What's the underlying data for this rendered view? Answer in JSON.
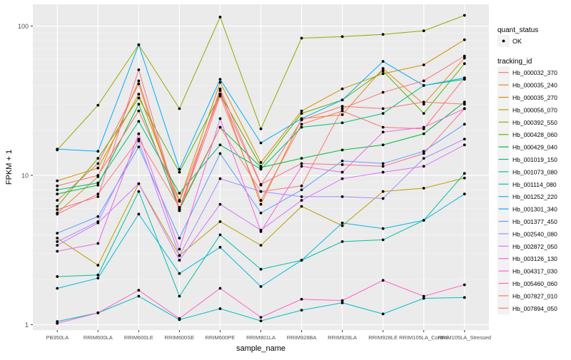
{
  "chart_data": {
    "type": "line",
    "xlabel": "sample_name",
    "ylabel": "FPKM + 1",
    "y_scale": "log10",
    "ylim": [
      0.92,
      140
    ],
    "y_ticks": [
      1,
      10,
      100
    ],
    "y_tick_labels": [
      "1",
      "10",
      "100"
    ],
    "grid": true,
    "legend_position": "right",
    "categories": [
      "PB350LA",
      "RRIM600LA",
      "RRIM600LE",
      "RRIM600SE",
      "RRIM600PE",
      "RRIM901LA",
      "RRIM928BA",
      "RRIM928LA",
      "RRIM928LE",
      "RRIM105LA_Control",
      "RRIM105LA_Stressed"
    ],
    "point_legend": {
      "title": "quant_status",
      "entries": [
        "OK"
      ]
    },
    "line_legend_title": "tracking_id",
    "series": [
      {
        "name": "Hb_000032_370",
        "color": "#F8766D",
        "values": [
          6.8,
          12.0,
          41.0,
          5.8,
          34.0,
          6.8,
          22.0,
          27.0,
          21.0,
          20.5,
          45.0
        ]
      },
      {
        "name": "Hb_000035_240",
        "color": "#E88526",
        "values": [
          5.6,
          9.8,
          43.0,
          6.0,
          37.0,
          6.4,
          24.0,
          25.5,
          52.0,
          30.0,
          61.0
        ]
      },
      {
        "name": "Hb_000035_270",
        "color": "#D39200",
        "values": [
          9.2,
          11.2,
          35.0,
          6.8,
          42.0,
          12.2,
          27.0,
          38.0,
          48.0,
          55.0,
          81.0
        ]
      },
      {
        "name": "Hb_000056_070",
        "color": "#B79F00",
        "values": [
          3.8,
          2.5,
          8.8,
          2.9,
          4.9,
          3.4,
          6.2,
          4.6,
          7.8,
          8.2,
          9.6
        ]
      },
      {
        "name": "Hb_000392_550",
        "color": "#93AA00",
        "values": [
          14.8,
          29.5,
          75.0,
          28.0,
          115.0,
          20.5,
          83.0,
          85.0,
          88.0,
          93.0,
          118.0
        ]
      },
      {
        "name": "Hb_000428_060",
        "color": "#5EB300",
        "values": [
          6.2,
          13.0,
          33.0,
          10.5,
          35.0,
          11.5,
          26.0,
          32.0,
          50.0,
          26.0,
          56.0
        ]
      },
      {
        "name": "Hb_000429_040",
        "color": "#00BA38",
        "values": [
          7.5,
          8.6,
          30.0,
          5.9,
          21.0,
          11.3,
          13.0,
          14.8,
          16.0,
          19.0,
          31.0
        ]
      },
      {
        "name": "Hb_001019_150",
        "color": "#00BF74",
        "values": [
          8.0,
          8.9,
          23.0,
          7.6,
          16.0,
          11.0,
          21.0,
          22.5,
          26.0,
          40.0,
          44.0
        ]
      },
      {
        "name": "Hb_001073_080",
        "color": "#00C19F",
        "values": [
          2.1,
          2.15,
          7.8,
          1.55,
          4.0,
          2.35,
          2.7,
          3.6,
          3.7,
          5.0,
          10.3
        ]
      },
      {
        "name": "Hb_001114_080",
        "color": "#00BFC4",
        "values": [
          1.05,
          1.2,
          1.55,
          1.08,
          1.28,
          1.06,
          1.25,
          1.4,
          1.18,
          1.5,
          1.52
        ]
      },
      {
        "name": "Hb_001252_220",
        "color": "#00B9E3",
        "values": [
          1.75,
          2.05,
          5.5,
          2.2,
          3.3,
          1.8,
          2.7,
          4.8,
          4.4,
          5.0,
          7.5
        ]
      },
      {
        "name": "Hb_001301_340",
        "color": "#00ADFA",
        "values": [
          15.0,
          14.5,
          75.0,
          11.0,
          44.0,
          16.5,
          24.0,
          32.0,
          58.0,
          40.0,
          45.0
        ]
      },
      {
        "name": "Hb_001377_450",
        "color": "#619CFF",
        "values": [
          4.1,
          5.3,
          15.5,
          3.8,
          14.0,
          5.6,
          8.0,
          12.5,
          12.0,
          14.5,
          22.0
        ]
      },
      {
        "name": "Hb_002540_080",
        "color": "#AE87FF",
        "values": [
          3.6,
          4.9,
          17.0,
          2.9,
          9.5,
          7.8,
          7.2,
          7.2,
          7.0,
          13.0,
          17.5
        ]
      },
      {
        "name": "Hb_002872_050",
        "color": "#DB72FB",
        "values": [
          3.4,
          4.8,
          8.8,
          2.7,
          6.4,
          4.3,
          6.8,
          9.5,
          10.5,
          11.5,
          16.0
        ]
      },
      {
        "name": "Hb_003126_130",
        "color": "#F564E3",
        "values": [
          3.1,
          3.5,
          19.0,
          3.2,
          24.0,
          4.2,
          11.5,
          10.5,
          19.5,
          21.0,
          28.0
        ]
      },
      {
        "name": "Hb_004317_030",
        "color": "#FF61C3",
        "values": [
          1.02,
          1.2,
          1.7,
          1.1,
          1.75,
          1.12,
          1.48,
          1.45,
          1.98,
          1.55,
          1.85
        ]
      },
      {
        "name": "Hb_005460_060",
        "color": "#FF6C91",
        "values": [
          5.9,
          7.2,
          51.0,
          5.8,
          38.0,
          8.7,
          12.0,
          11.8,
          11.5,
          14.0,
          28.0
        ]
      },
      {
        "name": "Hb_007827_010",
        "color": "#FA7876",
        "values": [
          5.5,
          7.5,
          17.5,
          6.1,
          21.0,
          7.8,
          8.5,
          28.0,
          36.0,
          43.0,
          63.0
        ]
      },
      {
        "name": "Hb_007894_050",
        "color": "#F8766D",
        "values": [
          8.5,
          10.0,
          27.0,
          6.7,
          35.0,
          8.6,
          23.5,
          29.0,
          28.0,
          31.0,
          30.0
        ]
      }
    ]
  }
}
